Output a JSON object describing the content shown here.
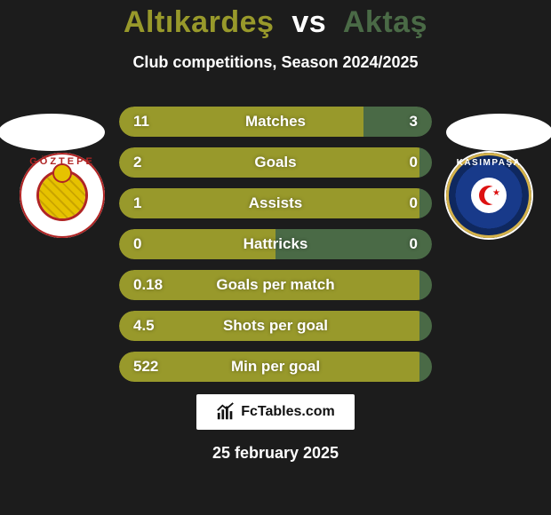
{
  "background_color": "#1c1c1c",
  "title": {
    "player1": "Altıkardeş",
    "vs": "vs",
    "player2": "Aktaş",
    "player1_color": "#98992b",
    "vs_color": "#ffffff",
    "player2_color": "#4a6a46"
  },
  "subtitle": "Club competitions, Season 2024/2025",
  "badge_left": {
    "ring_text": "GÖZTEPE",
    "ring_color": "#b02424"
  },
  "badge_right": {
    "ring_text": "KASIMPAŞA"
  },
  "bars": {
    "left_color": "#98992b",
    "right_color": "#4a6a46",
    "rows": [
      {
        "label": "Matches",
        "left": "11",
        "right": "3",
        "left_pct": 78,
        "right_pct": 22
      },
      {
        "label": "Goals",
        "left": "2",
        "right": "0",
        "left_pct": 96,
        "right_pct": 4
      },
      {
        "label": "Assists",
        "left": "1",
        "right": "0",
        "left_pct": 96,
        "right_pct": 4
      },
      {
        "label": "Hattricks",
        "left": "0",
        "right": "0",
        "left_pct": 50,
        "right_pct": 50
      },
      {
        "label": "Goals per match",
        "left": "0.18",
        "right": "",
        "left_pct": 96,
        "right_pct": 4
      },
      {
        "label": "Shots per goal",
        "left": "4.5",
        "right": "",
        "left_pct": 96,
        "right_pct": 4
      },
      {
        "label": "Min per goal",
        "left": "522",
        "right": "",
        "left_pct": 96,
        "right_pct": 4
      }
    ]
  },
  "watermark": "FcTables.com",
  "date": "25 february 2025"
}
